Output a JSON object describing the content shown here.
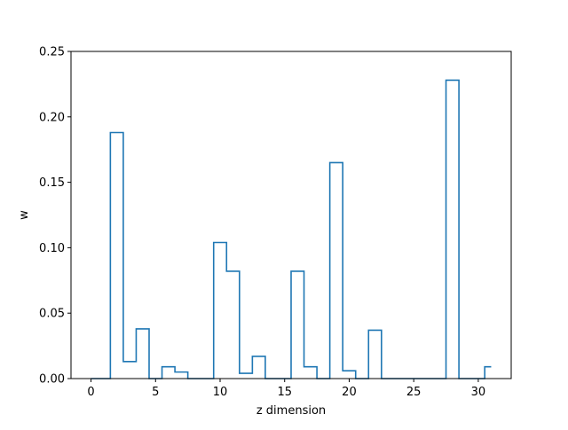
{
  "chart_data": {
    "type": "step",
    "title": "",
    "xlabel": "z dimension",
    "ylabel": "w",
    "xlim": [
      -1.55,
      32.55
    ],
    "ylim": [
      0,
      0.25
    ],
    "x_ticks": [
      0,
      5,
      10,
      15,
      20,
      25,
      30
    ],
    "x_tick_labels": [
      "0",
      "5",
      "10",
      "15",
      "20",
      "25",
      "30"
    ],
    "y_ticks": [
      0,
      0.05,
      0.1,
      0.15,
      0.2,
      0.25
    ],
    "y_tick_labels": [
      "0.00",
      "0.05",
      "0.10",
      "0.15",
      "0.20",
      "0.25"
    ],
    "grid": false,
    "step_where": "mid",
    "x": [
      0,
      1,
      2,
      3,
      4,
      5,
      6,
      7,
      8,
      9,
      10,
      11,
      12,
      13,
      14,
      15,
      16,
      17,
      18,
      19,
      20,
      21,
      22,
      23,
      24,
      25,
      26,
      27,
      28,
      29,
      30,
      31
    ],
    "values": [
      0,
      0,
      0.188,
      0.013,
      0.038,
      0,
      0.009,
      0.005,
      0,
      0,
      0.104,
      0.082,
      0.004,
      0.017,
      0,
      0,
      0.082,
      0.009,
      0,
      0.165,
      0.006,
      0,
      0.037,
      0,
      0,
      0,
      0,
      0,
      0.228,
      0,
      0,
      0.009
    ],
    "line_color": "#1f77b4"
  }
}
